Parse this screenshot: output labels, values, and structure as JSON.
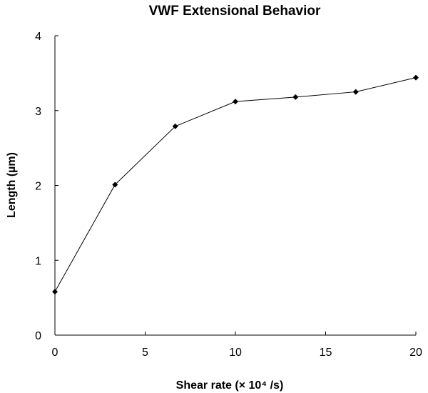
{
  "chart_data": {
    "type": "line",
    "title": "VWF Extensional Behavior",
    "xlabel": "Shear rate (× 10⁴ /s)",
    "ylabel": "Length (µm)",
    "xlim": [
      0,
      20
    ],
    "ylim": [
      0,
      4
    ],
    "x_ticks": [
      0,
      5,
      10,
      15,
      20
    ],
    "y_ticks": [
      0,
      1,
      2,
      3,
      4
    ],
    "x_tick_labels": [
      "0",
      "5",
      "10",
      "15",
      "20"
    ],
    "y_tick_labels": [
      "0",
      "1",
      "2",
      "3",
      "4"
    ],
    "grid": false,
    "legend": "none",
    "marker": "diamond",
    "line_color": "#000000",
    "series": [
      {
        "x": [
          0,
          3.33,
          6.67,
          10,
          13.33,
          16.67,
          20
        ],
        "y": [
          0.58,
          2.01,
          2.79,
          3.12,
          3.18,
          3.25,
          3.44
        ]
      }
    ]
  }
}
